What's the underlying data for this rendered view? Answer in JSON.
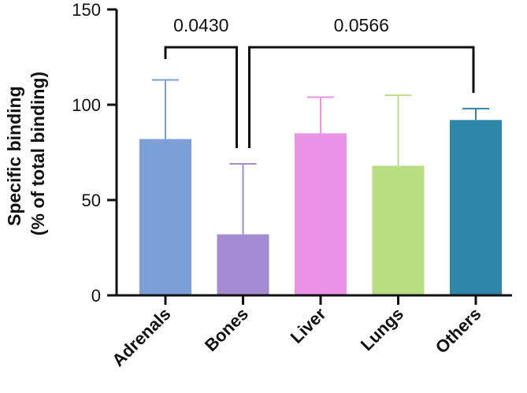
{
  "chart_data": {
    "type": "bar",
    "title": "",
    "ylabel_line1": "Specific binding",
    "ylabel_line2": "(% of total binding)",
    "xlabel": "",
    "categories": [
      "Adrenals",
      "Bones",
      "Liver",
      "Lungs",
      "Others"
    ],
    "values": [
      82,
      32,
      85,
      68,
      92
    ],
    "error_upper": [
      113,
      69,
      104,
      105,
      98
    ],
    "colors": [
      "#7b9fd6",
      "#a48bd2",
      "#ea93e6",
      "#b9de82",
      "#2e87a9"
    ],
    "ylim": [
      0,
      150
    ],
    "yticks": [
      "0",
      "50",
      "100",
      "150"
    ],
    "grid": false,
    "legend": "none",
    "comparisons": [
      {
        "from": "Adrenals",
        "to": "Bones",
        "label": "0.0430"
      },
      {
        "from": "Bones",
        "to": "Others",
        "label": "0.0566"
      }
    ]
  }
}
